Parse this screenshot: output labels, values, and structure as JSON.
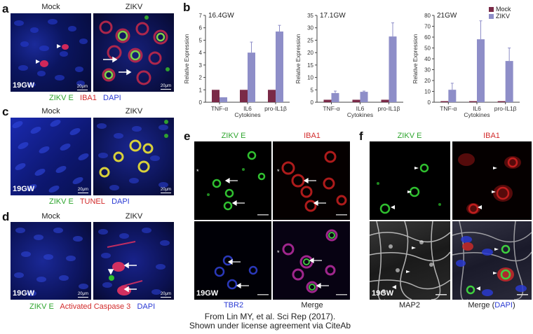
{
  "panel_letters": {
    "a": "a",
    "b": "b",
    "c": "c",
    "d": "d",
    "e": "e",
    "f": "f"
  },
  "panel_a": {
    "col_labels": [
      "Mock",
      "ZIKV"
    ],
    "gw": "19GW",
    "scalebars": [
      "20μm",
      "20μm"
    ],
    "legend": [
      {
        "text": "ZIKV E",
        "color": "#2da52d"
      },
      {
        "text": "IBA1",
        "color": "#d22b2b"
      },
      {
        "text": "DAPI",
        "color": "#2a3ad4"
      }
    ]
  },
  "panel_c": {
    "col_labels": [
      "Mock",
      "ZIKV"
    ],
    "gw": "19GW",
    "scalebars": [
      "20μm",
      "20μm"
    ],
    "legend": [
      {
        "text": "ZIKV E",
        "color": "#2da52d"
      },
      {
        "text": "TUNEL",
        "color": "#d22b2b"
      },
      {
        "text": "DAPI",
        "color": "#2a3ad4"
      }
    ]
  },
  "panel_d": {
    "col_labels": [
      "Mock",
      "ZIKV"
    ],
    "gw": "19GW",
    "scalebars": [
      "20μm",
      "20μm"
    ],
    "legend": [
      {
        "text": "ZIKV E",
        "color": "#2da52d"
      },
      {
        "text": "Activated Caspase 3",
        "color": "#d22b2b"
      },
      {
        "text": "DAPI",
        "color": "#2a3ad4"
      }
    ]
  },
  "panel_e": {
    "top_labels": [
      {
        "text": "ZIKV E",
        "color": "#2da52d"
      },
      {
        "text": "IBA1",
        "color": "#d22b2b"
      }
    ],
    "bottom_labels": [
      {
        "text": "TBR2",
        "color": "#2a3ad4"
      },
      {
        "text": "Merge",
        "color": "#222222"
      }
    ],
    "gw": "19GW"
  },
  "panel_f": {
    "top_labels": [
      {
        "text": "ZIKV E",
        "color": "#2da52d"
      },
      {
        "text": "IBA1",
        "color": "#d22b2b"
      }
    ],
    "bottom_labels": [
      {
        "text": "MAP2",
        "color": "#222222"
      }
    ],
    "merge_label": {
      "prefix": "Merge (",
      "dapi": "DAPI",
      "suffix": ")"
    },
    "gw": "19GW"
  },
  "credit": {
    "line1": "From Lin MY, et al. Sci Rep (2017).",
    "line2": "Shown under license agreement via CiteAb"
  },
  "chart_data": [
    {
      "type": "bar",
      "title": "16.4GW",
      "categories": [
        "TNF-α",
        "IL6",
        "pro-IL1β"
      ],
      "xlabel": "Cytokines",
      "ylabel": "Relative Expression",
      "ylim": [
        0,
        7
      ],
      "yticks": [
        "0",
        "1",
        "2",
        "3",
        "4",
        "5",
        "6",
        "7"
      ],
      "series": [
        {
          "name": "Mock",
          "color": "#7a2a47",
          "values": [
            1,
            1,
            1
          ]
        },
        {
          "name": "ZIKV",
          "color": "#8e8ec8",
          "values": [
            0.4,
            4.0,
            5.7
          ],
          "errors": [
            0.0,
            0.85,
            0.5
          ]
        }
      ]
    },
    {
      "type": "bar",
      "title": "17.1GW",
      "categories": [
        "TNF-α",
        "IL6",
        "pro-IL1β"
      ],
      "xlabel": "Cytokines",
      "ylabel": "Relative Expression",
      "ylim": [
        0,
        35
      ],
      "yticks": [
        "0",
        "5",
        "10",
        "15",
        "20",
        "25",
        "30",
        "35"
      ],
      "series": [
        {
          "name": "Mock",
          "color": "#7a2a47",
          "values": [
            1,
            1,
            1
          ]
        },
        {
          "name": "ZIKV",
          "color": "#8e8ec8",
          "values": [
            3.7,
            4.2,
            26.5
          ],
          "errors": [
            0.8,
            0.3,
            5.5
          ]
        }
      ]
    },
    {
      "type": "bar",
      "title": "21GW",
      "categories": [
        "TNF-α",
        "IL6",
        "pro-IL1β"
      ],
      "xlabel": "Cytokines",
      "ylabel": "Relative Expression",
      "ylim": [
        0,
        80
      ],
      "yticks": [
        "0",
        "10",
        "20",
        "30",
        "40",
        "50",
        "60",
        "70",
        "80"
      ],
      "legend_position": "top-right",
      "series": [
        {
          "name": "Mock",
          "color": "#7a2a47",
          "values": [
            1,
            1,
            1
          ]
        },
        {
          "name": "ZIKV",
          "color": "#8e8ec8",
          "values": [
            11.5,
            58,
            38
          ],
          "errors": [
            6,
            17,
            12
          ]
        }
      ]
    }
  ]
}
